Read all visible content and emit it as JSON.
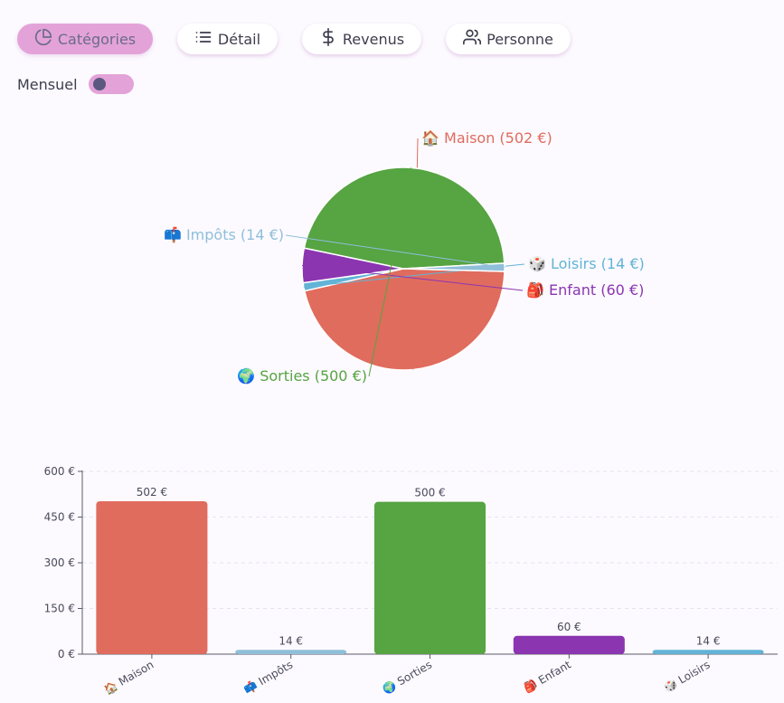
{
  "tabs": [
    {
      "label": "Catégories",
      "icon": "pie-chart-icon",
      "active": true
    },
    {
      "label": "Détail",
      "icon": "list-icon",
      "active": false
    },
    {
      "label": "Revenus",
      "icon": "dollar-icon",
      "active": false
    },
    {
      "label": "Personne",
      "icon": "users-icon",
      "active": false
    }
  ],
  "toggle": {
    "label": "Mensuel",
    "on": false
  },
  "colors": {
    "accent": "#e3a3d8",
    "maison": "#e06c5e",
    "impots": "#8fbfd9",
    "sorties": "#56a442",
    "enfant": "#8b35b0",
    "loisirs": "#62b3d6"
  },
  "chart_data": [
    {
      "type": "pie",
      "slices": [
        {
          "name": "Maison",
          "icon": "house-emoji",
          "emoji": "🏠",
          "value": 502,
          "label": "Maison (502 €)",
          "color": "#e06c5e"
        },
        {
          "name": "Loisirs",
          "icon": "dice-emoji",
          "emoji": "🎲",
          "value": 14,
          "label": "Loisirs (14 €)",
          "color": "#62b3d6"
        },
        {
          "name": "Enfant",
          "icon": "backpack-emoji",
          "emoji": "🎒",
          "value": 60,
          "label": "Enfant (60 €)",
          "color": "#8b35b0"
        },
        {
          "name": "Sorties",
          "icon": "globe-emoji",
          "emoji": "🌍",
          "value": 500,
          "label": "Sorties (500 €)",
          "color": "#56a442"
        },
        {
          "name": "Impôts",
          "icon": "mailbox-emoji",
          "emoji": "📫",
          "value": 14,
          "label": "Impôts (14 €)",
          "color": "#8fbfd9"
        }
      ]
    },
    {
      "type": "bar",
      "categories": [
        "Maison",
        "Impôts",
        "Sorties",
        "Enfant",
        "Loisirs"
      ],
      "category_emojis": [
        "🏠",
        "📫",
        "🌍",
        "🎒",
        "🎲"
      ],
      "values": [
        502,
        14,
        500,
        60,
        14
      ],
      "value_labels": [
        "502 €",
        "14 €",
        "500 €",
        "60 €",
        "14 €"
      ],
      "colors": [
        "#e06c5e",
        "#8fbfd9",
        "#56a442",
        "#8b35b0",
        "#62b3d6"
      ],
      "yticks": [
        "0 €",
        "150 €",
        "300 €",
        "450 €",
        "600 €"
      ],
      "ylim": [
        0,
        600
      ],
      "grid": true
    }
  ]
}
